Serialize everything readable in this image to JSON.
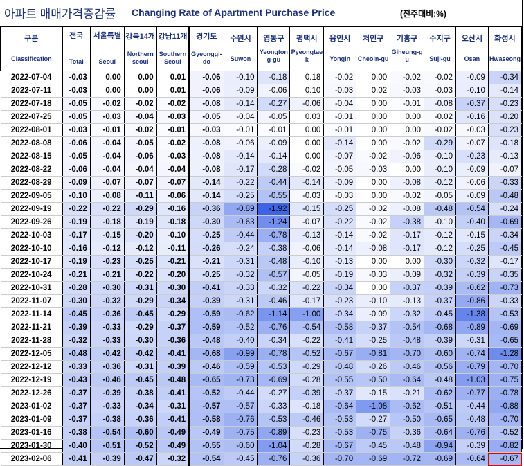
{
  "title": {
    "korean": "아파트 매매가격증감률",
    "english": "Changing Rate of Apartment Purchase Price",
    "unit": "(전주대비:%)"
  },
  "columns": [
    {
      "ko": "구분",
      "en": "Classification"
    },
    {
      "ko": "전국",
      "en": "Total"
    },
    {
      "ko": "서울특별",
      "en": "Seoul"
    },
    {
      "ko": "강북14개",
      "en": "Northern seoul"
    },
    {
      "ko": "강남11개",
      "en": "Southern Seoul"
    },
    {
      "ko": "경기도",
      "en": "Gyeonggi-do"
    },
    {
      "ko": "수원시",
      "en": "Suwon"
    },
    {
      "ko": "영통구",
      "en": "Yeongtong-gu"
    },
    {
      "ko": "평택시",
      "en": "Pyeongtaek"
    },
    {
      "ko": "용인시",
      "en": "Yongin"
    },
    {
      "ko": "처인구",
      "en": "Cheoin-gu"
    },
    {
      "ko": "기흥구",
      "en": "Giheung-gu"
    },
    {
      "ko": "수지구",
      "en": "Suji-gu"
    },
    {
      "ko": "오산시",
      "en": "Osan"
    },
    {
      "ko": "화성시",
      "en": "Hwaseong"
    }
  ],
  "rows": [
    {
      "date": "2022-07-04",
      "values": [
        "-0.03",
        "0.00",
        "0.00",
        "0.01",
        "-0.06",
        "-0.10",
        "-0.18",
        "0.18",
        "-0.02",
        "0.00",
        "-0.02",
        "-0.02",
        "-0.09",
        "-0.34"
      ]
    },
    {
      "date": "2022-07-11",
      "values": [
        "-0.03",
        "0.00",
        "0.00",
        "0.01",
        "-0.06",
        "-0.09",
        "-0.06",
        "0.10",
        "-0.03",
        "0.02",
        "-0.03",
        "-0.03",
        "-0.10",
        "-0.14"
      ]
    },
    {
      "date": "2022-07-18",
      "values": [
        "-0.05",
        "-0.02",
        "-0.02",
        "-0.02",
        "-0.08",
        "-0.14",
        "-0.27",
        "-0.06",
        "-0.04",
        "0.00",
        "-0.01",
        "-0.08",
        "-0.37",
        "-0.23"
      ]
    },
    {
      "date": "2022-07-25",
      "values": [
        "-0.05",
        "-0.03",
        "-0.04",
        "-0.03",
        "-0.05",
        "-0.04",
        "-0.05",
        "0.03",
        "-0.01",
        "0.00",
        "0.00",
        "-0.02",
        "-0.16",
        "-0.20"
      ]
    },
    {
      "date": "2022-08-01",
      "values": [
        "-0.03",
        "-0.01",
        "-0.02",
        "-0.01",
        "-0.03",
        "-0.01",
        "-0.01",
        "0.00",
        "-0.01",
        "0.00",
        "0.00",
        "-0.02",
        "-0.03",
        "-0.23"
      ]
    },
    {
      "date": "2022-08-08",
      "values": [
        "-0.06",
        "-0.04",
        "-0.05",
        "-0.02",
        "-0.08",
        "-0.06",
        "-0.09",
        "0.00",
        "-0.14",
        "0.00",
        "-0.02",
        "-0.29",
        "-0.07",
        "-0.18"
      ]
    },
    {
      "date": "2022-08-15",
      "values": [
        "-0.05",
        "-0.04",
        "-0.06",
        "-0.03",
        "-0.08",
        "-0.14",
        "-0.14",
        "0.00",
        "-0.07",
        "-0.02",
        "-0.06",
        "-0.10",
        "-0.23",
        "-0.13"
      ]
    },
    {
      "date": "2022-08-22",
      "values": [
        "-0.06",
        "-0.04",
        "-0.04",
        "-0.04",
        "-0.08",
        "-0.17",
        "-0.28",
        "-0.02",
        "-0.05",
        "-0.03",
        "0.00",
        "-0.10",
        "-0.09",
        "-0.07"
      ]
    },
    {
      "date": "2022-08-29",
      "values": [
        "-0.09",
        "-0.07",
        "-0.07",
        "-0.07",
        "-0.14",
        "-0.22",
        "-0.44",
        "-0.14",
        "-0.09",
        "0.00",
        "-0.08",
        "-0.12",
        "-0.06",
        "-0.33"
      ]
    },
    {
      "date": "2022-09-05",
      "values": [
        "-0.10",
        "-0.08",
        "-0.11",
        "-0.06",
        "-0.14",
        "-0.25",
        "-0.55",
        "-0.03",
        "-0.03",
        "0.00",
        "-0.02",
        "-0.05",
        "-0.09",
        "-0.48"
      ]
    },
    {
      "date": "2022-09-19",
      "values": [
        "-0.22",
        "-0.22",
        "-0.29",
        "-0.16",
        "-0.36",
        "-0.89",
        "-1.92",
        "-0.15",
        "-0.25",
        "-0.02",
        "-0.08",
        "-0.48",
        "-0.54",
        "-0.24"
      ]
    },
    {
      "date": "2022-09-26",
      "values": [
        "-0.19",
        "-0.18",
        "-0.19",
        "-0.18",
        "-0.30",
        "-0.63",
        "-1.24",
        "-0.07",
        "-0.22",
        "-0.02",
        "-0.38",
        "-0.10",
        "-0.40",
        "-0.69"
      ]
    },
    {
      "date": "2022-10-03",
      "values": [
        "-0.17",
        "-0.15",
        "-0.20",
        "-0.10",
        "-0.25",
        "-0.44",
        "-0.78",
        "-0.13",
        "-0.14",
        "-0.02",
        "-0.17",
        "-0.12",
        "-0.15",
        "-0.34"
      ]
    },
    {
      "date": "2022-10-10",
      "values": [
        "-0.16",
        "-0.12",
        "-0.12",
        "-0.11",
        "-0.26",
        "-0.24",
        "-0.38",
        "-0.06",
        "-0.14",
        "-0.08",
        "-0.17",
        "-0.12",
        "-0.25",
        "-0.45"
      ]
    },
    {
      "date": "2022-10-17",
      "values": [
        "-0.19",
        "-0.23",
        "-0.25",
        "-0.21",
        "-0.21",
        "-0.31",
        "-0.48",
        "-0.10",
        "-0.13",
        "0.00",
        "0.00",
        "-0.30",
        "-0.32",
        "-0.17"
      ]
    },
    {
      "date": "2022-10-24",
      "values": [
        "-0.21",
        "-0.21",
        "-0.22",
        "-0.20",
        "-0.25",
        "-0.32",
        "-0.57",
        "-0.05",
        "-0.19",
        "-0.03",
        "-0.09",
        "-0.32",
        "-0.39",
        "-0.35"
      ]
    },
    {
      "date": "2022-10-31",
      "values": [
        "-0.28",
        "-0.30",
        "-0.31",
        "-0.30",
        "-0.41",
        "-0.33",
        "-0.32",
        "-0.22",
        "-0.34",
        "0.00",
        "-0.37",
        "-0.39",
        "-0.62",
        "-0.73"
      ]
    },
    {
      "date": "2022-11-07",
      "values": [
        "-0.30",
        "-0.32",
        "-0.29",
        "-0.34",
        "-0.39",
        "-0.31",
        "-0.46",
        "-0.17",
        "-0.23",
        "-0.10",
        "-0.13",
        "-0.37",
        "-0.86",
        "-0.33"
      ]
    },
    {
      "date": "2022-11-14",
      "values": [
        "-0.45",
        "-0.36",
        "-0.45",
        "-0.29",
        "-0.59",
        "-0.62",
        "-1.14",
        "-1.00",
        "-0.34",
        "-0.09",
        "-0.32",
        "-0.45",
        "-1.38",
        "-0.53"
      ]
    },
    {
      "date": "2022-11-21",
      "values": [
        "-0.39",
        "-0.33",
        "-0.29",
        "-0.37",
        "-0.59",
        "-0.52",
        "-0.76",
        "-0.54",
        "-0.58",
        "-0.37",
        "-0.54",
        "-0.68",
        "-0.89",
        "-0.69"
      ]
    },
    {
      "date": "2022-11-28",
      "values": [
        "-0.32",
        "-0.33",
        "-0.30",
        "-0.36",
        "-0.48",
        "-0.40",
        "-0.34",
        "-0.22",
        "-0.41",
        "-0.25",
        "-0.48",
        "-0.39",
        "-0.31",
        "-0.65"
      ]
    },
    {
      "date": "2022-12-05",
      "values": [
        "-0.48",
        "-0.42",
        "-0.42",
        "-0.41",
        "-0.68",
        "-0.99",
        "-0.78",
        "-0.52",
        "-0.67",
        "-0.81",
        "-0.70",
        "-0.60",
        "-0.74",
        "-1.28"
      ]
    },
    {
      "date": "2022-12-12",
      "values": [
        "-0.33",
        "-0.36",
        "-0.31",
        "-0.39",
        "-0.46",
        "-0.59",
        "-0.53",
        "-0.29",
        "-0.48",
        "-0.26",
        "-0.46",
        "-0.56",
        "-0.79",
        "-0.70"
      ]
    },
    {
      "date": "2022-12-19",
      "values": [
        "-0.43",
        "-0.46",
        "-0.45",
        "-0.48",
        "-0.65",
        "-0.73",
        "-0.69",
        "-0.28",
        "-0.55",
        "-0.50",
        "-0.64",
        "-0.48",
        "-1.03",
        "-0.75"
      ]
    },
    {
      "date": "2022-12-26",
      "values": [
        "-0.37",
        "-0.39",
        "-0.38",
        "-0.41",
        "-0.52",
        "-0.44",
        "-0.27",
        "-0.39",
        "-0.37",
        "-0.15",
        "-0.21",
        "-0.62",
        "-0.77",
        "-0.78"
      ]
    },
    {
      "date": "2023-01-02",
      "values": [
        "-0.37",
        "-0.33",
        "-0.34",
        "-0.31",
        "-0.57",
        "-0.57",
        "-0.33",
        "-0.18",
        "-0.64",
        "-1.08",
        "-0.62",
        "-0.51",
        "-0.44",
        "-0.88"
      ]
    },
    {
      "date": "2023-01-09",
      "values": [
        "-0.37",
        "-0.38",
        "-0.36",
        "-0.41",
        "-0.58",
        "-0.76",
        "-0.53",
        "-0.46",
        "-0.53",
        "-0.27",
        "-0.50",
        "-0.65",
        "-0.48",
        "-0.70"
      ]
    },
    {
      "date": "2023-01-16",
      "values": [
        "-0.38",
        "-0.54",
        "-0.60",
        "-0.49",
        "-0.49",
        "-0.75",
        "-0.89",
        "-0.23",
        "-0.53",
        "-0.75",
        "-0.36",
        "-0.64",
        "-0.76",
        "-0.52"
      ]
    },
    {
      "date": "2023-01-30",
      "values": [
        "-0.40",
        "-0.51",
        "-0.52",
        "-0.49",
        "-0.55",
        "-0.60",
        "-1.04",
        "-0.28",
        "-0.67",
        "-0.45",
        "-0.48",
        "-0.94",
        "-0.39",
        "-0.82"
      ]
    },
    {
      "date": "2023-02-06",
      "values": [
        "-0.41",
        "-0.39",
        "-0.47",
        "-0.32",
        "-0.54",
        "-0.45",
        "-0.76",
        "-0.36",
        "-0.70",
        "-0.69",
        "-0.72",
        "-0.69",
        "-0.64",
        "-0.67"
      ]
    }
  ],
  "highlight": {
    "row": 29,
    "col": 14,
    "color": "#e00000"
  }
}
